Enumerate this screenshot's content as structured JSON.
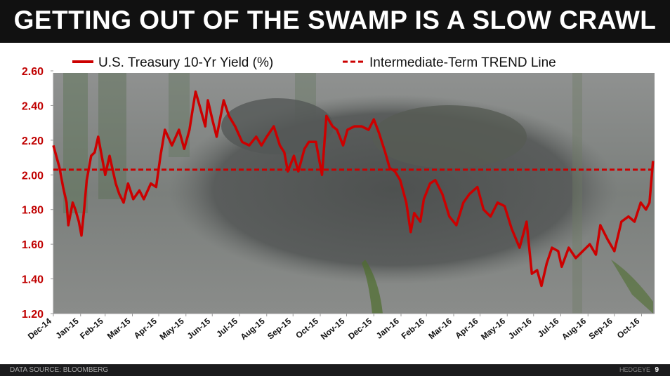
{
  "title": "GETTING OUT OF THE SWAMP IS A SLOW CRAWL",
  "footer": {
    "source": "DATA SOURCE: BLOOMBERG",
    "brand": "HEDGEYE",
    "page": "9"
  },
  "colors": {
    "series": "#cc0000",
    "trend": "#cc0000",
    "title_bg": "#111111"
  },
  "chart_data": {
    "type": "line",
    "title": "GETTING OUT OF THE SWAMP IS A SLOW CRAWL",
    "background": "alligator-in-swamp-photo",
    "ylim": [
      1.2,
      2.6
    ],
    "yticks": [
      "1.20",
      "1.40",
      "1.60",
      "1.80",
      "2.00",
      "2.20",
      "2.40",
      "2.60"
    ],
    "xticks": [
      "Dec-14",
      "Jan-15",
      "Feb-15",
      "Mar-15",
      "Apr-15",
      "May-15",
      "Jun-15",
      "Jul-15",
      "Aug-15",
      "Sep-15",
      "Oct-15",
      "Nov-15",
      "Dec-15",
      "Jan-16",
      "Feb-16",
      "Mar-16",
      "Apr-16",
      "May-16",
      "Jun-16",
      "Jul-16",
      "Aug-16",
      "Sep-16",
      "Oct-16"
    ],
    "grid": false,
    "legend_position": "top",
    "series": [
      {
        "name": "U.S. Treasury 10-Yr Yield (%)",
        "style": "solid",
        "x": [
          "2014-12-31",
          "2015-01-07",
          "2015-01-11",
          "2015-01-15",
          "2015-01-17",
          "2015-01-22",
          "2015-01-25",
          "2015-01-29",
          "2015-02-01",
          "2015-02-04",
          "2015-02-07",
          "2015-02-12",
          "2015-02-16",
          "2015-02-20",
          "2015-02-24",
          "2015-02-28",
          "2015-03-05",
          "2015-03-12",
          "2015-03-16",
          "2015-03-21",
          "2015-03-26",
          "2015-04-01",
          "2015-04-08",
          "2015-04-13",
          "2015-04-21",
          "2015-04-27",
          "2015-05-02",
          "2015-05-07",
          "2015-05-15",
          "2015-05-23",
          "2015-05-29",
          "2015-06-04",
          "2015-06-08",
          "2015-06-11",
          "2015-06-16",
          "2015-06-22",
          "2015-06-25",
          "2015-06-30",
          "2015-07-05",
          "2015-07-13",
          "2015-07-19",
          "2015-07-26",
          "2015-08-03",
          "2015-08-11",
          "2015-08-19",
          "2015-08-25",
          "2015-08-31",
          "2015-09-08",
          "2015-09-15",
          "2015-09-20",
          "2015-09-24",
          "2015-10-01",
          "2015-10-06",
          "2015-10-13",
          "2015-10-18",
          "2015-10-26",
          "2015-11-02",
          "2015-11-07",
          "2015-11-14",
          "2015-11-19",
          "2015-11-26",
          "2015-12-01",
          "2015-12-09",
          "2015-12-17",
          "2015-12-25",
          "2015-12-31",
          "2016-01-06",
          "2016-01-13",
          "2016-01-18",
          "2016-01-24",
          "2016-01-30",
          "2016-02-06",
          "2016-02-11",
          "2016-02-15",
          "2016-02-22",
          "2016-02-26",
          "2016-03-04",
          "2016-03-10",
          "2016-03-18",
          "2016-03-26",
          "2016-04-03",
          "2016-04-11",
          "2016-04-18",
          "2016-04-27",
          "2016-05-04",
          "2016-05-12",
          "2016-05-20",
          "2016-05-28",
          "2016-06-05",
          "2016-06-14",
          "2016-06-22",
          "2016-06-28",
          "2016-07-04",
          "2016-07-09",
          "2016-07-15",
          "2016-07-21",
          "2016-07-28",
          "2016-08-01",
          "2016-08-09",
          "2016-08-17",
          "2016-08-25",
          "2016-09-02",
          "2016-09-09",
          "2016-09-14",
          "2016-09-22",
          "2016-09-30",
          "2016-10-08",
          "2016-10-16",
          "2016-10-23",
          "2016-10-30",
          "2016-11-05",
          "2016-11-09",
          "2016-11-13"
        ],
        "values": [
          2.17,
          2.04,
          1.93,
          1.84,
          1.71,
          1.84,
          1.8,
          1.73,
          1.65,
          1.8,
          1.97,
          2.11,
          2.13,
          2.22,
          2.11,
          2.0,
          2.11,
          1.95,
          1.89,
          1.84,
          1.95,
          1.86,
          1.91,
          1.86,
          1.95,
          1.93,
          2.11,
          2.26,
          2.17,
          2.26,
          2.15,
          2.26,
          2.39,
          2.48,
          2.39,
          2.28,
          2.43,
          2.32,
          2.22,
          2.43,
          2.34,
          2.28,
          2.19,
          2.17,
          2.22,
          2.17,
          2.22,
          2.28,
          2.17,
          2.13,
          2.02,
          2.11,
          2.02,
          2.15,
          2.19,
          2.19,
          2.0,
          2.34,
          2.28,
          2.26,
          2.17,
          2.26,
          2.28,
          2.28,
          2.26,
          2.32,
          2.24,
          2.13,
          2.04,
          2.02,
          1.97,
          1.84,
          1.67,
          1.78,
          1.73,
          1.86,
          1.95,
          1.97,
          1.89,
          1.76,
          1.71,
          1.84,
          1.89,
          1.93,
          1.8,
          1.76,
          1.84,
          1.82,
          1.69,
          1.58,
          1.73,
          1.43,
          1.45,
          1.36,
          1.49,
          1.58,
          1.56,
          1.47,
          1.58,
          1.52,
          1.56,
          1.6,
          1.54,
          1.71,
          1.63,
          1.56,
          1.73,
          1.76,
          1.73,
          1.84,
          1.8,
          1.84,
          2.08
        ]
      },
      {
        "name": "Intermediate-Term TREND Line",
        "style": "dashed",
        "value": 2.03
      }
    ]
  }
}
